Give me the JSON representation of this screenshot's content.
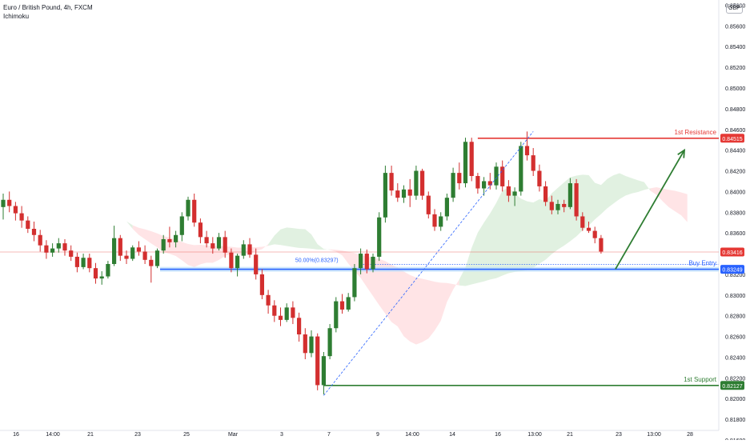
{
  "header": {
    "title": "Euro / British Pound, 4h, FXCM",
    "indicator": "Ichimoku"
  },
  "currency_badge": "GBP",
  "chart_data": {
    "type": "candlestick",
    "price_range": [
      0.816,
      0.8585
    ],
    "y_ticks": [
      "0.85800",
      "0.85600",
      "0.85400",
      "0.85200",
      "0.85000",
      "0.84800",
      "0.84600",
      "0.84400",
      "0.84200",
      "0.84000",
      "0.83800",
      "0.83600",
      "0.83200",
      "0.83000",
      "0.82800",
      "0.82600",
      "0.82400",
      "0.82200",
      "0.82000",
      "0.81800",
      "0.81600"
    ],
    "x_ticks": [
      "16",
      "14:00",
      "21",
      "23",
      "25",
      "Mar",
      "3",
      "7",
      "9",
      "14:00",
      "14",
      "16",
      "13:00",
      "21",
      "23",
      "13:00",
      "28"
    ],
    "levels": [
      {
        "name": "1st Resistance",
        "value": 0.84515,
        "label": "0.84515",
        "color": "#e53935"
      },
      {
        "name": "Buy Entry",
        "value": 0.83249,
        "label": "0.83249",
        "color": "#2962ff"
      },
      {
        "name": "1st Support",
        "value": 0.82127,
        "label": "0.82127",
        "color": "#2e7d32"
      }
    ],
    "current_price": {
      "value": 0.83416,
      "label": "0.83416",
      "color": "#e53935"
    },
    "fib_label": "50.00%(0.83297)",
    "fib_value": 0.83297,
    "colors": {
      "up": "#2e7d32",
      "down": "#d32f2f",
      "cloud_bull": "#c8e6c9",
      "cloud_bear": "#ffcdd2"
    },
    "candles": [
      [
        0.8385,
        0.8398,
        0.8373,
        0.8392
      ],
      [
        0.8392,
        0.84,
        0.838,
        0.8386
      ],
      [
        0.8386,
        0.839,
        0.8372,
        0.8379
      ],
      [
        0.8379,
        0.8386,
        0.8365,
        0.8372
      ],
      [
        0.8372,
        0.8376,
        0.836,
        0.8364
      ],
      [
        0.8364,
        0.8371,
        0.8352,
        0.8358
      ],
      [
        0.8358,
        0.8363,
        0.8342,
        0.8348
      ],
      [
        0.8348,
        0.8353,
        0.8335,
        0.8341
      ],
      [
        0.8341,
        0.835,
        0.8337,
        0.8345
      ],
      [
        0.8345,
        0.8355,
        0.8341,
        0.835
      ],
      [
        0.835,
        0.8354,
        0.8338,
        0.8343
      ],
      [
        0.8343,
        0.8348,
        0.8333,
        0.8337
      ],
      [
        0.8337,
        0.8341,
        0.8322,
        0.8327
      ],
      [
        0.8327,
        0.834,
        0.8325,
        0.8336
      ],
      [
        0.8336,
        0.834,
        0.8322,
        0.8326
      ],
      [
        0.8326,
        0.8331,
        0.8311,
        0.8316
      ],
      [
        0.8316,
        0.8323,
        0.831,
        0.8318
      ],
      [
        0.8318,
        0.8333,
        0.8316,
        0.833
      ],
      [
        0.833,
        0.8367,
        0.8328,
        0.8355
      ],
      [
        0.8355,
        0.8358,
        0.8333,
        0.8338
      ],
      [
        0.8338,
        0.8343,
        0.833,
        0.8335
      ],
      [
        0.8335,
        0.8348,
        0.8333,
        0.8346
      ],
      [
        0.8346,
        0.8352,
        0.8338,
        0.8342
      ],
      [
        0.8342,
        0.8348,
        0.833,
        0.8334
      ],
      [
        0.8334,
        0.8338,
        0.8312,
        0.8328
      ],
      [
        0.8328,
        0.8345,
        0.8326,
        0.8343
      ],
      [
        0.8343,
        0.8358,
        0.834,
        0.8354
      ],
      [
        0.8354,
        0.8366,
        0.8346,
        0.8351
      ],
      [
        0.8351,
        0.8362,
        0.8346,
        0.8358
      ],
      [
        0.8358,
        0.838,
        0.8352,
        0.8376
      ],
      [
        0.8376,
        0.8395,
        0.8372,
        0.8392
      ],
      [
        0.8392,
        0.8398,
        0.8366,
        0.837
      ],
      [
        0.837,
        0.8374,
        0.835,
        0.8356
      ],
      [
        0.8356,
        0.8362,
        0.8346,
        0.835
      ],
      [
        0.835,
        0.8356,
        0.834,
        0.8345
      ],
      [
        0.8345,
        0.836,
        0.8343,
        0.8356
      ],
      [
        0.8356,
        0.8362,
        0.8336,
        0.8341
      ],
      [
        0.8341,
        0.8345,
        0.8322,
        0.8326
      ],
      [
        0.8326,
        0.834,
        0.8318,
        0.8338
      ],
      [
        0.8338,
        0.8353,
        0.8335,
        0.8349
      ],
      [
        0.8349,
        0.8355,
        0.8336,
        0.8339
      ],
      [
        0.8339,
        0.8345,
        0.8315,
        0.832
      ],
      [
        0.832,
        0.8325,
        0.8296,
        0.83
      ],
      [
        0.83,
        0.8305,
        0.8282,
        0.829
      ],
      [
        0.829,
        0.8295,
        0.8274,
        0.828
      ],
      [
        0.828,
        0.8288,
        0.827,
        0.8276
      ],
      [
        0.8276,
        0.8292,
        0.8274,
        0.8288
      ],
      [
        0.8288,
        0.8294,
        0.8272,
        0.8278
      ],
      [
        0.8278,
        0.8283,
        0.8255,
        0.8262
      ],
      [
        0.8262,
        0.8268,
        0.8238,
        0.8244
      ],
      [
        0.8244,
        0.8266,
        0.824,
        0.826
      ],
      [
        0.826,
        0.8263,
        0.8208,
        0.8213
      ],
      [
        0.8213,
        0.8245,
        0.8204,
        0.8241
      ],
      [
        0.8241,
        0.8272,
        0.8238,
        0.8268
      ],
      [
        0.8268,
        0.8298,
        0.8264,
        0.8294
      ],
      [
        0.8294,
        0.8301,
        0.8282,
        0.8286
      ],
      [
        0.8286,
        0.8302,
        0.8284,
        0.8298
      ],
      [
        0.8298,
        0.833,
        0.8294,
        0.8326
      ],
      [
        0.8326,
        0.8345,
        0.832,
        0.834
      ],
      [
        0.834,
        0.8344,
        0.8321,
        0.8325
      ],
      [
        0.8325,
        0.834,
        0.8322,
        0.8337
      ],
      [
        0.8337,
        0.838,
        0.8333,
        0.8375
      ],
      [
        0.8375,
        0.8425,
        0.837,
        0.8418
      ],
      [
        0.8418,
        0.8425,
        0.8396,
        0.8401
      ],
      [
        0.8401,
        0.8408,
        0.839,
        0.8394
      ],
      [
        0.8394,
        0.8406,
        0.8389,
        0.8402
      ],
      [
        0.8402,
        0.8412,
        0.8385,
        0.8396
      ],
      [
        0.8396,
        0.8425,
        0.8392,
        0.842
      ],
      [
        0.842,
        0.8422,
        0.8392,
        0.8396
      ],
      [
        0.8396,
        0.84,
        0.8374,
        0.8378
      ],
      [
        0.8378,
        0.8383,
        0.8362,
        0.8366
      ],
      [
        0.8366,
        0.838,
        0.8362,
        0.8376
      ],
      [
        0.8376,
        0.8398,
        0.8372,
        0.8394
      ],
      [
        0.8394,
        0.8423,
        0.839,
        0.8418
      ],
      [
        0.8418,
        0.8428,
        0.8402,
        0.8408
      ],
      [
        0.8408,
        0.8452,
        0.8404,
        0.8448
      ],
      [
        0.8448,
        0.8452,
        0.841,
        0.8415
      ],
      [
        0.8415,
        0.8418,
        0.8398,
        0.8403
      ],
      [
        0.8403,
        0.8414,
        0.8396,
        0.841
      ],
      [
        0.841,
        0.8418,
        0.8402,
        0.8406
      ],
      [
        0.8406,
        0.8428,
        0.8402,
        0.8424
      ],
      [
        0.8424,
        0.843,
        0.84,
        0.8405
      ],
      [
        0.8405,
        0.8411,
        0.839,
        0.8396
      ],
      [
        0.8396,
        0.8404,
        0.8386,
        0.84
      ],
      [
        0.84,
        0.8448,
        0.8396,
        0.8444
      ],
      [
        0.8444,
        0.8458,
        0.843,
        0.8435
      ],
      [
        0.8435,
        0.8442,
        0.8415,
        0.842
      ],
      [
        0.842,
        0.8426,
        0.84,
        0.8405
      ],
      [
        0.8405,
        0.841,
        0.8386,
        0.839
      ],
      [
        0.839,
        0.8396,
        0.8378,
        0.8382
      ],
      [
        0.8382,
        0.8392,
        0.8378,
        0.8388
      ],
      [
        0.8388,
        0.8392,
        0.838,
        0.8385
      ],
      [
        0.8385,
        0.8413,
        0.8383,
        0.8408
      ],
      [
        0.8408,
        0.8412,
        0.8372,
        0.8376
      ],
      [
        0.8376,
        0.838,
        0.8362,
        0.8365
      ],
      [
        0.8365,
        0.8371,
        0.836,
        0.8362
      ],
      [
        0.8362,
        0.8366,
        0.835,
        0.8355
      ],
      [
        0.8355,
        0.8358,
        0.834,
        0.8342
      ]
    ]
  }
}
